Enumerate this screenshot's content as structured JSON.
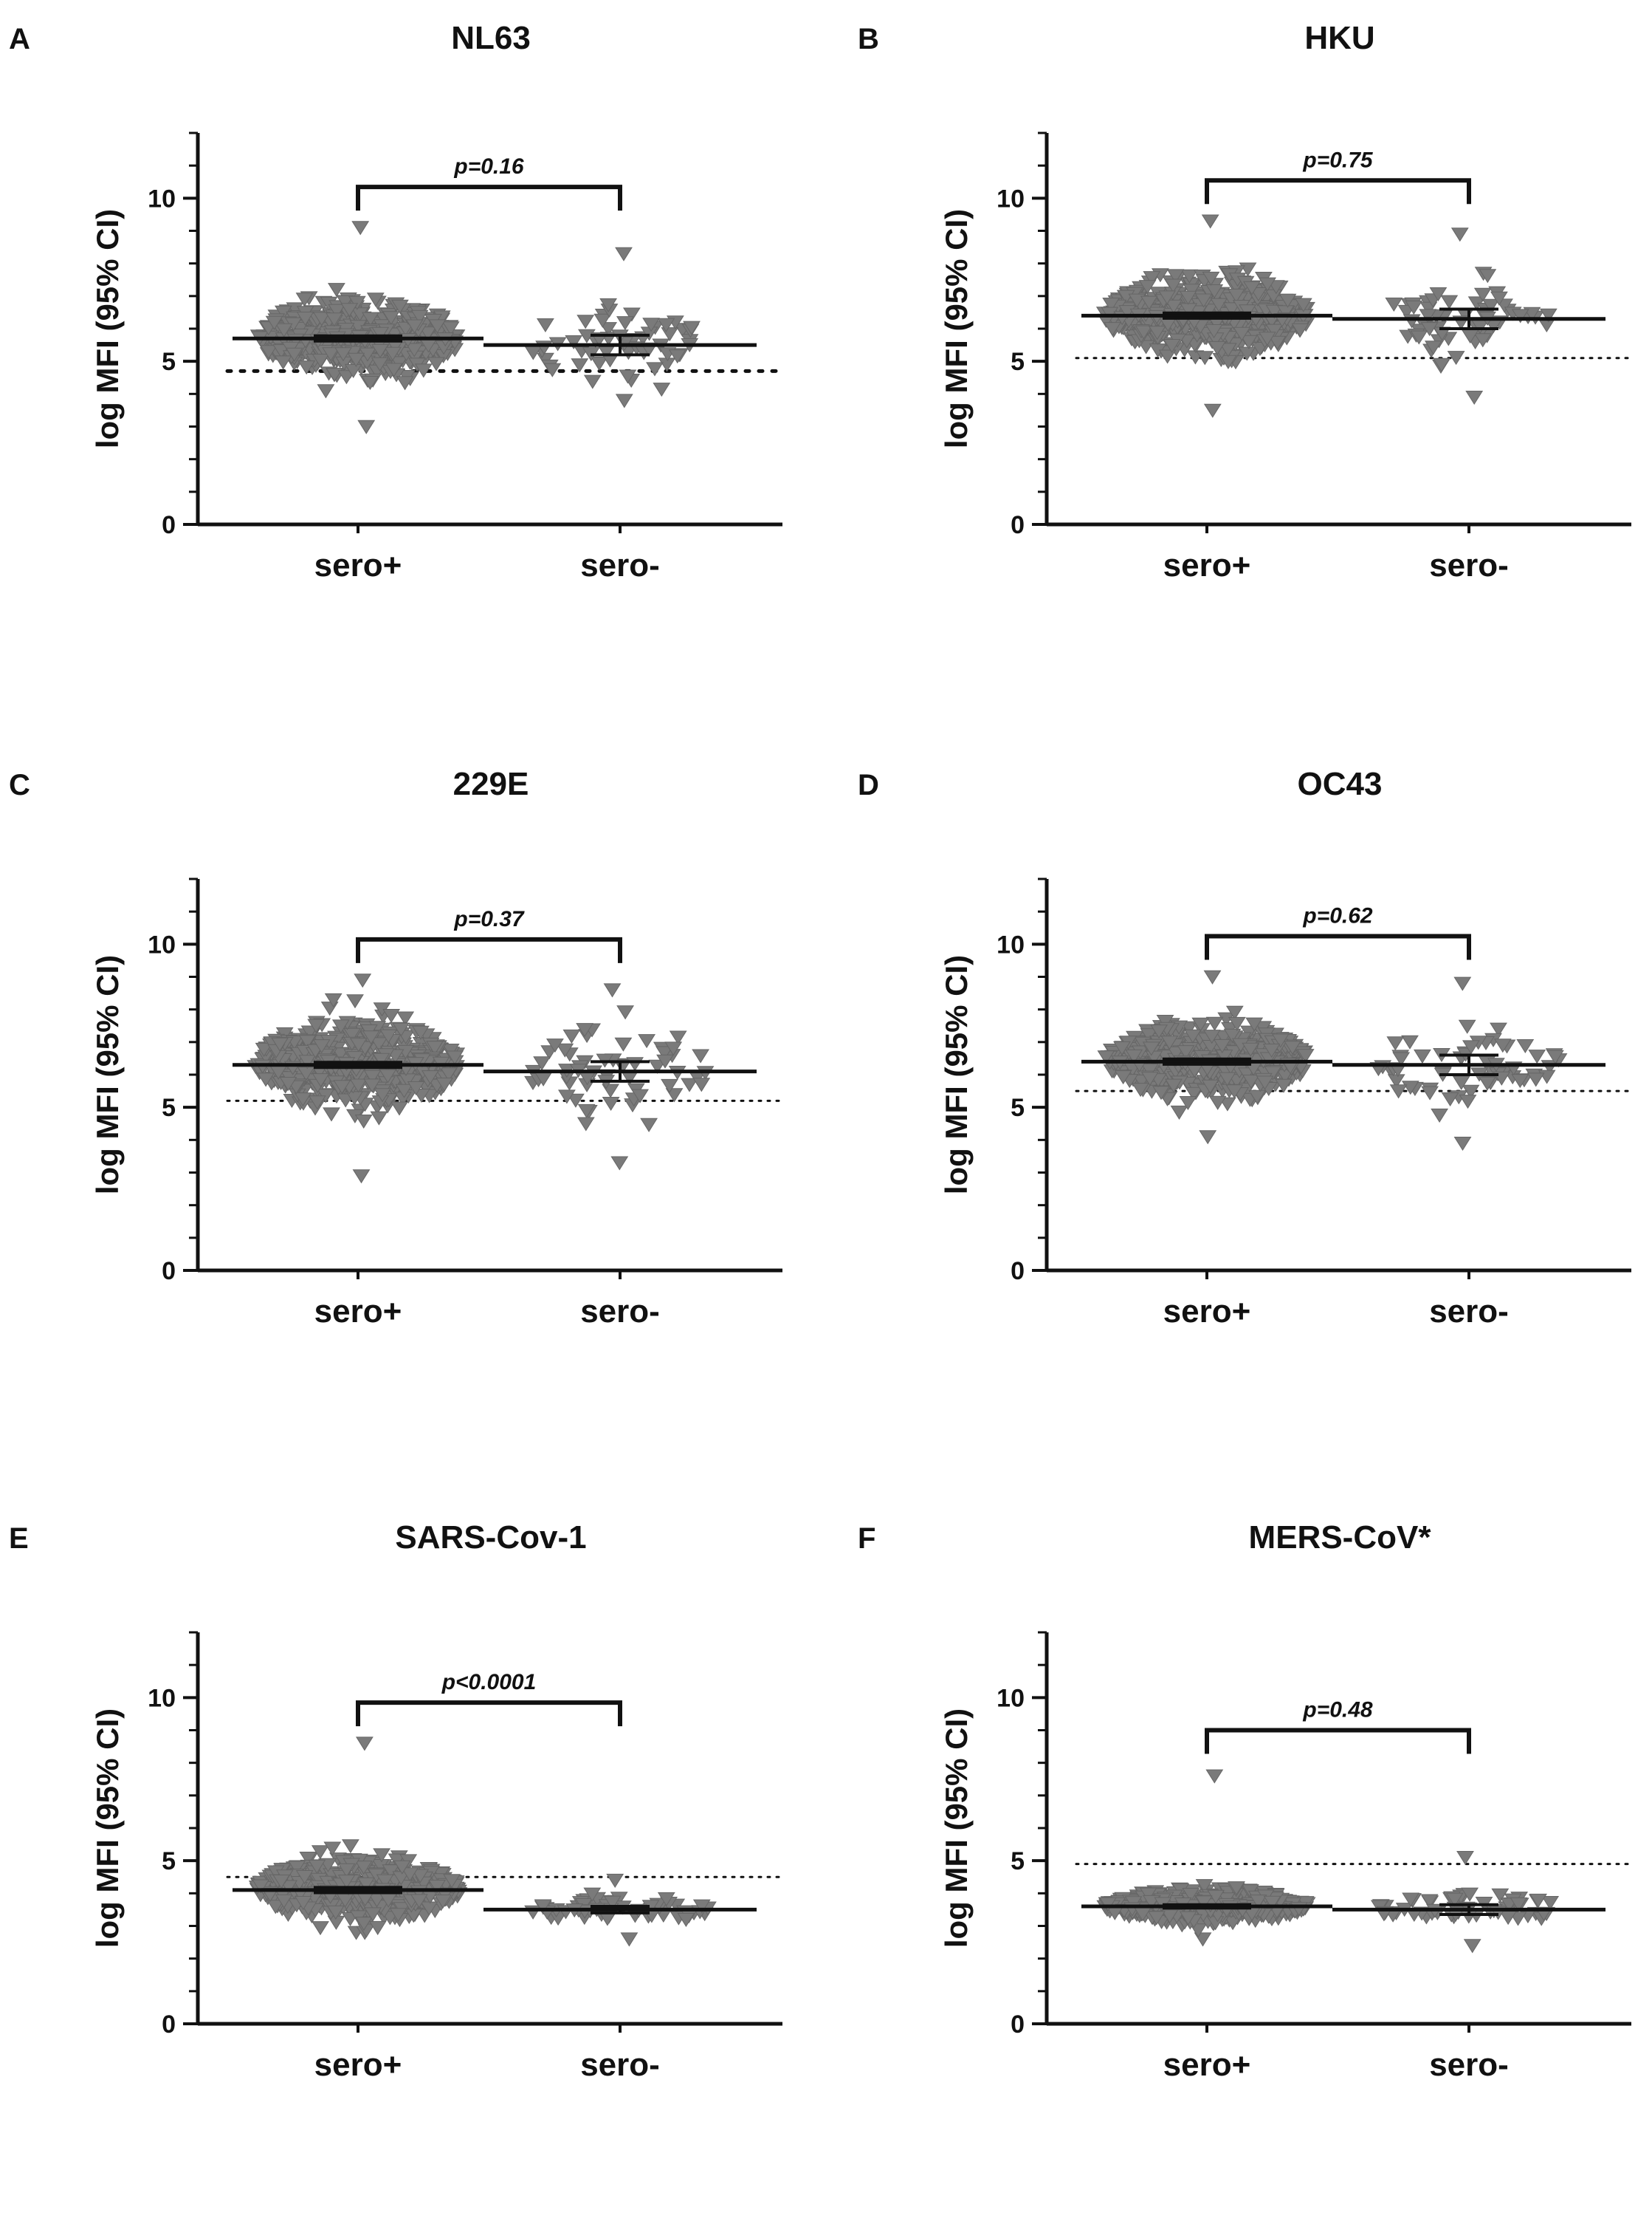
{
  "figure": {
    "categories": [
      "sero+",
      "sero-"
    ],
    "ylabel": "log MFI (95% CI)",
    "ylim": [
      0,
      12
    ],
    "yticks": [
      0,
      5,
      10
    ]
  },
  "chart_data": [
    {
      "type": "scatter",
      "letter": "A",
      "title": "NL63",
      "p_value": "p=0.16",
      "threshold": 4.7,
      "threshold_style": "bold",
      "series": [
        {
          "name": "sero+",
          "mean": 5.7,
          "ci": [
            5.62,
            5.78
          ],
          "min": 3.0,
          "max": 9.1,
          "spread": 1.0,
          "n": 520
        },
        {
          "name": "sero-",
          "mean": 5.5,
          "ci": [
            5.2,
            5.8
          ],
          "min": 3.8,
          "max": 8.3,
          "spread": 1.0,
          "n": 60
        }
      ]
    },
    {
      "type": "scatter",
      "letter": "B",
      "title": "HKU",
      "p_value": "p=0.75",
      "threshold": 5.1,
      "threshold_style": "thin",
      "series": [
        {
          "name": "sero+",
          "mean": 6.4,
          "ci": [
            6.32,
            6.48
          ],
          "min": 3.5,
          "max": 9.3,
          "spread": 1.0,
          "n": 560
        },
        {
          "name": "sero-",
          "mean": 6.3,
          "ci": [
            6.0,
            6.6
          ],
          "min": 3.9,
          "max": 8.9,
          "spread": 1.1,
          "n": 60
        }
      ]
    },
    {
      "type": "scatter",
      "letter": "C",
      "title": "229E",
      "p_value": "p=0.37",
      "threshold": 5.2,
      "threshold_style": "thin",
      "series": [
        {
          "name": "sero+",
          "mean": 6.3,
          "ci": [
            6.22,
            6.38
          ],
          "min": 2.9,
          "max": 8.9,
          "spread": 1.1,
          "n": 560
        },
        {
          "name": "sero-",
          "mean": 6.1,
          "ci": [
            5.8,
            6.4
          ],
          "min": 3.3,
          "max": 8.6,
          "spread": 1.1,
          "n": 60
        }
      ]
    },
    {
      "type": "scatter",
      "letter": "D",
      "title": "OC43",
      "p_value": "p=0.62",
      "threshold": 5.5,
      "threshold_style": "thin",
      "series": [
        {
          "name": "sero+",
          "mean": 6.4,
          "ci": [
            6.32,
            6.48
          ],
          "min": 4.1,
          "max": 9.0,
          "spread": 0.9,
          "n": 560
        },
        {
          "name": "sero-",
          "mean": 6.3,
          "ci": [
            6.0,
            6.6
          ],
          "min": 3.9,
          "max": 8.8,
          "spread": 1.1,
          "n": 60
        }
      ]
    },
    {
      "type": "scatter",
      "letter": "E",
      "title": "SARS-Cov-1",
      "p_value": "p<0.0001",
      "threshold": 4.5,
      "threshold_style": "thin",
      "series": [
        {
          "name": "sero+",
          "mean": 4.1,
          "ci": [
            4.02,
            4.18
          ],
          "min": 2.8,
          "max": 8.6,
          "spread": 0.8,
          "n": 560
        },
        {
          "name": "sero-",
          "mean": 3.5,
          "ci": [
            3.4,
            3.6
          ],
          "min": 2.6,
          "max": 4.4,
          "spread": 0.35,
          "n": 60
        }
      ]
    },
    {
      "type": "scatter",
      "letter": "F",
      "title": "MERS-CoV*",
      "p_value": "p=0.48",
      "threshold": 4.9,
      "threshold_style": "thin",
      "series": [
        {
          "name": "sero+",
          "mean": 3.6,
          "ci": [
            3.55,
            3.65
          ],
          "min": 2.6,
          "max": 7.6,
          "spread": 0.4,
          "n": 560
        },
        {
          "name": "sero-",
          "mean": 3.5,
          "ci": [
            3.35,
            3.65
          ],
          "min": 2.4,
          "max": 5.1,
          "spread": 0.45,
          "n": 60
        }
      ]
    }
  ]
}
